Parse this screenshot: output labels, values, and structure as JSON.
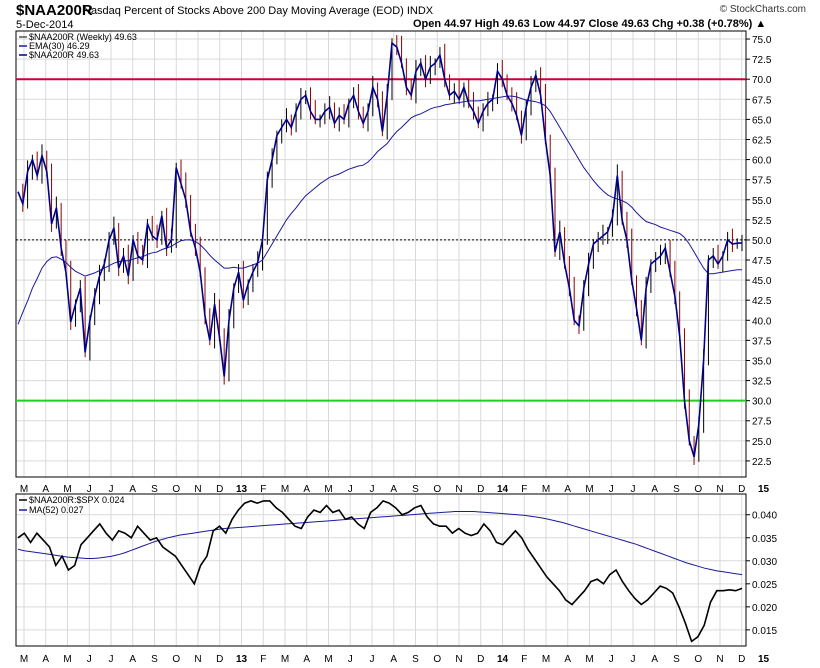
{
  "header": {
    "symbol": "$NAA200R",
    "description": "Nasdaq Percent of Stocks Above 200 Day Moving Average (EOD) INDX",
    "date": "5-Dec-2014",
    "brand": "© StockCharts.com",
    "ohlc_line": "Open 44.97   High 49.63   Low 44.97   Close 49.63   Chg +0.38 (+0.78%) ▲"
  },
  "colors": {
    "price": "#00008b",
    "ema": "#1a1a9c",
    "down_tick": "#8b0000",
    "upper_line": "#c8003c",
    "lower_line": "#22cc22",
    "ratio": "#000000",
    "ratio_ma": "#1a1a9c",
    "grid": "#d9d9d9"
  },
  "chart_data": [
    {
      "type": "line",
      "panel": "main",
      "legend": [
        "$NAA200R (Weekly) 49.63",
        "EMA(30) 46.29",
        "$NAA200R 49.63"
      ],
      "ylim": [
        20.5,
        76
      ],
      "y_ticks": [
        "75.0",
        "72.5",
        "70.0",
        "67.5",
        "65.0",
        "62.5",
        "60.0",
        "57.5",
        "55.0",
        "52.5",
        "50.0",
        "47.5",
        "45.0",
        "42.5",
        "40.0",
        "37.5",
        "35.0",
        "32.5",
        "30.0",
        "27.5",
        "25.0",
        "22.5"
      ],
      "reference_lines": {
        "upper": 70,
        "lower": 30,
        "dotted": 50
      },
      "x_labels": [
        "M",
        "A",
        "M",
        "J",
        "J",
        "A",
        "S",
        "O",
        "N",
        "D",
        "13",
        "F",
        "M",
        "A",
        "M",
        "J",
        "J",
        "A",
        "S",
        "O",
        "N",
        "D",
        "14",
        "F",
        "M",
        "A",
        "M",
        "J",
        "J",
        "A",
        "S",
        "O",
        "N",
        "D",
        "15"
      ],
      "series": [
        {
          "role": "price",
          "values": [
            56,
            54.5,
            58.5,
            60,
            58,
            60.5,
            58.5,
            52,
            54,
            49,
            46,
            39.8,
            42,
            44,
            36,
            40,
            43,
            45.5,
            47,
            50,
            51.5,
            46.5,
            48,
            45.5,
            50,
            48,
            47.5,
            52,
            50.5,
            50,
            53,
            49,
            50,
            59,
            57,
            55,
            51,
            49,
            46,
            40.5,
            37.5,
            42,
            38,
            33,
            40,
            44,
            46,
            42.5,
            44.5,
            46,
            47.2,
            50,
            57.5,
            60,
            63,
            64,
            65,
            64,
            66,
            67.5,
            68,
            66,
            65,
            65,
            66,
            66.5,
            64.5,
            65.5,
            65,
            67,
            68,
            66,
            64.5,
            66,
            69,
            67.5,
            63.5,
            68,
            74.5,
            74,
            72,
            69,
            68,
            71,
            72,
            70,
            71.5,
            72,
            73,
            70,
            68,
            68.5,
            67.5,
            69,
            67,
            66,
            64.5,
            66,
            67,
            67.5,
            71,
            70,
            68,
            67,
            65.5,
            63,
            66.5,
            69,
            70.5,
            68,
            62.5,
            58,
            48.5,
            51,
            47,
            44,
            40,
            39.3,
            44,
            47,
            49.5,
            50,
            50.5,
            51,
            52.8,
            58,
            52.5,
            50,
            45,
            41.5,
            37.5,
            44,
            47,
            47.5,
            48,
            49,
            46,
            43,
            38,
            30,
            25,
            23,
            27,
            35,
            47.5,
            48,
            47,
            48,
            50,
            49.5,
            49.6,
            49.63
          ]
        },
        {
          "role": "ema",
          "values": [
            39.5,
            41,
            42.4,
            44,
            45.2,
            46.5,
            47.3,
            47.8,
            47.9,
            47.6,
            47.2,
            46.6,
            46.1,
            45.8,
            45.5,
            45.7,
            45.9,
            46.2,
            46.5,
            46.8,
            47.1,
            47.3,
            47.4,
            47.4,
            47.6,
            47.8,
            47.9,
            48.2,
            48.4,
            48.5,
            48.8,
            49,
            49.2,
            49.6,
            49.9,
            50,
            50,
            49.8,
            49.4,
            48.8,
            48.1,
            47.5,
            47,
            46.5,
            46.5,
            46.6,
            46.5,
            46.5,
            46.7,
            46.9,
            47.1,
            47.5,
            48.5,
            49.5,
            50.5,
            51.5,
            52.5,
            53.3,
            54,
            54.8,
            55.5,
            56,
            56.5,
            57,
            57.4,
            57.8,
            58,
            58.2,
            58.5,
            58.8,
            59,
            59.2,
            59.3,
            59.7,
            60.3,
            61,
            61.5,
            62,
            62.8,
            63.5,
            64,
            64.6,
            65.2,
            65.5,
            65.7,
            66,
            66.3,
            66.5,
            66.6,
            66.8,
            66.9,
            67,
            67.1,
            67.2,
            67.3,
            67.3,
            67.3,
            67.4,
            67.5,
            67.6,
            67.7,
            67.8,
            67.9,
            67.9,
            67.8,
            67.6,
            67.4,
            67.3,
            67.2,
            67,
            66.7,
            66,
            65,
            64,
            63,
            62,
            61,
            60,
            59,
            58.2,
            57.4,
            56.7,
            56.1,
            55.6,
            55.3,
            55.1,
            54.9,
            54.6,
            54.1,
            53.4,
            52.8,
            52.3,
            52.1,
            51.9,
            51.6,
            51.4,
            51.2,
            51,
            50.8,
            50.3,
            49.5,
            48.5,
            47.5,
            46.5,
            45.8,
            45.8,
            45.9,
            46,
            46.1,
            46.2,
            46.3,
            46.29
          ]
        }
      ]
    },
    {
      "type": "line",
      "panel": "ratio",
      "legend": [
        "$NAA200R:$SPX 0.024",
        "MA(52) 0.027"
      ],
      "ylim": [
        0.0115,
        0.0445
      ],
      "y_ticks": [
        "0.040",
        "0.035",
        "0.030",
        "0.025",
        "0.020",
        "0.015"
      ],
      "x_labels": [
        "M",
        "A",
        "M",
        "J",
        "J",
        "A",
        "S",
        "O",
        "N",
        "D",
        "13",
        "F",
        "M",
        "A",
        "M",
        "J",
        "J",
        "A",
        "S",
        "O",
        "N",
        "D",
        "14",
        "F",
        "M",
        "A",
        "M",
        "J",
        "J",
        "A",
        "S",
        "O",
        "N",
        "D",
        "15"
      ],
      "series": [
        {
          "role": "ratio",
          "values": [
            0.035,
            0.036,
            0.034,
            0.036,
            0.0345,
            0.033,
            0.029,
            0.031,
            0.028,
            0.029,
            0.0335,
            0.035,
            0.0365,
            0.038,
            0.036,
            0.0345,
            0.0365,
            0.036,
            0.035,
            0.0375,
            0.036,
            0.0345,
            0.035,
            0.033,
            0.032,
            0.031,
            0.029,
            0.027,
            0.025,
            0.029,
            0.031,
            0.0365,
            0.0375,
            0.036,
            0.039,
            0.041,
            0.0425,
            0.043,
            0.0425,
            0.043,
            0.043,
            0.0415,
            0.0405,
            0.039,
            0.0375,
            0.037,
            0.0395,
            0.041,
            0.0405,
            0.042,
            0.0405,
            0.041,
            0.039,
            0.0395,
            0.038,
            0.037,
            0.0405,
            0.0415,
            0.043,
            0.0425,
            0.0415,
            0.04,
            0.0405,
            0.0415,
            0.042,
            0.0395,
            0.038,
            0.0375,
            0.0375,
            0.036,
            0.037,
            0.036,
            0.0355,
            0.036,
            0.038,
            0.0365,
            0.034,
            0.0335,
            0.035,
            0.0365,
            0.035,
            0.0325,
            0.0305,
            0.0285,
            0.0265,
            0.025,
            0.0235,
            0.0215,
            0.0205,
            0.022,
            0.0235,
            0.0255,
            0.026,
            0.025,
            0.027,
            0.028,
            0.0255,
            0.0235,
            0.0218,
            0.0205,
            0.0215,
            0.023,
            0.0245,
            0.024,
            0.023,
            0.02,
            0.0165,
            0.0125,
            0.0135,
            0.016,
            0.021,
            0.0235,
            0.0235,
            0.0237,
            0.0235,
            0.024
          ]
        },
        {
          "role": "ma",
          "values": [
            0.0325,
            0.0322,
            0.032,
            0.0318,
            0.0316,
            0.0314,
            0.0312,
            0.031,
            0.0308,
            0.0307,
            0.0306,
            0.0305,
            0.0305,
            0.0306,
            0.0308,
            0.031,
            0.0313,
            0.0317,
            0.0322,
            0.0327,
            0.0332,
            0.0337,
            0.0342,
            0.0346,
            0.035,
            0.0353,
            0.0356,
            0.0358,
            0.036,
            0.0362,
            0.0364,
            0.0366,
            0.0368,
            0.037,
            0.0371,
            0.0372,
            0.0373,
            0.0374,
            0.0375,
            0.0376,
            0.0377,
            0.0378,
            0.0379,
            0.038,
            0.0381,
            0.0382,
            0.0383,
            0.0384,
            0.0385,
            0.0386,
            0.0387,
            0.0388,
            0.0389,
            0.039,
            0.0391,
            0.0392,
            0.0393,
            0.0394,
            0.0395,
            0.0396,
            0.0397,
            0.0398,
            0.0399,
            0.04,
            0.0401,
            0.0402,
            0.0403,
            0.0404,
            0.0405,
            0.0406,
            0.0407,
            0.0407,
            0.0407,
            0.0407,
            0.0406,
            0.0405,
            0.0404,
            0.0403,
            0.0402,
            0.0401,
            0.04,
            0.0399,
            0.0397,
            0.0395,
            0.0393,
            0.039,
            0.0387,
            0.0384,
            0.038,
            0.0376,
            0.0372,
            0.0368,
            0.0364,
            0.036,
            0.0356,
            0.0352,
            0.0348,
            0.0344,
            0.034,
            0.0336,
            0.0331,
            0.0326,
            0.0321,
            0.0316,
            0.0311,
            0.0306,
            0.0301,
            0.0296,
            0.0292,
            0.0288,
            0.0284,
            0.0281,
            0.0278,
            0.0276,
            0.0274,
            0.0272,
            0.027
          ]
        }
      ]
    }
  ]
}
